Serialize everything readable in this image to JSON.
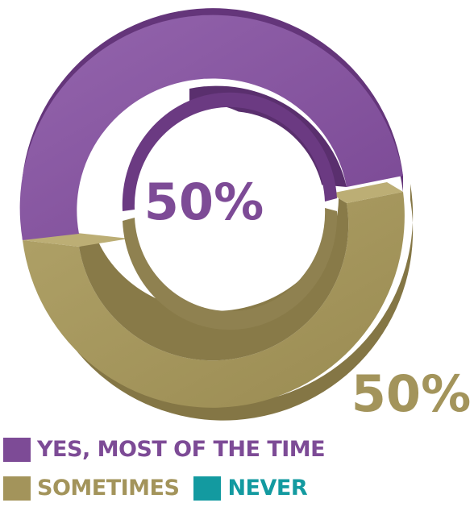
{
  "chart_data": {
    "type": "pie",
    "style": "3d-donut",
    "slices": [
      {
        "label": "YES, MOST OF THE TIME",
        "value": 50,
        "display": "50%",
        "color": "#7d4b96"
      },
      {
        "label": "SOMETIMES",
        "value": 50,
        "display": "50%",
        "color": "#a3945b"
      },
      {
        "label": "NEVER",
        "value": 0,
        "display": "",
        "color": "#139aa0"
      }
    ],
    "legend_placement": "bottom-left"
  },
  "legend": {
    "row1": [
      {
        "label": "YES, MOST OF THE TIME",
        "color": "#7d4b96"
      }
    ],
    "row2": [
      {
        "label": "SOMETIMES",
        "color": "#a3945b"
      },
      {
        "label": "NEVER",
        "color": "#139aa0"
      }
    ]
  }
}
